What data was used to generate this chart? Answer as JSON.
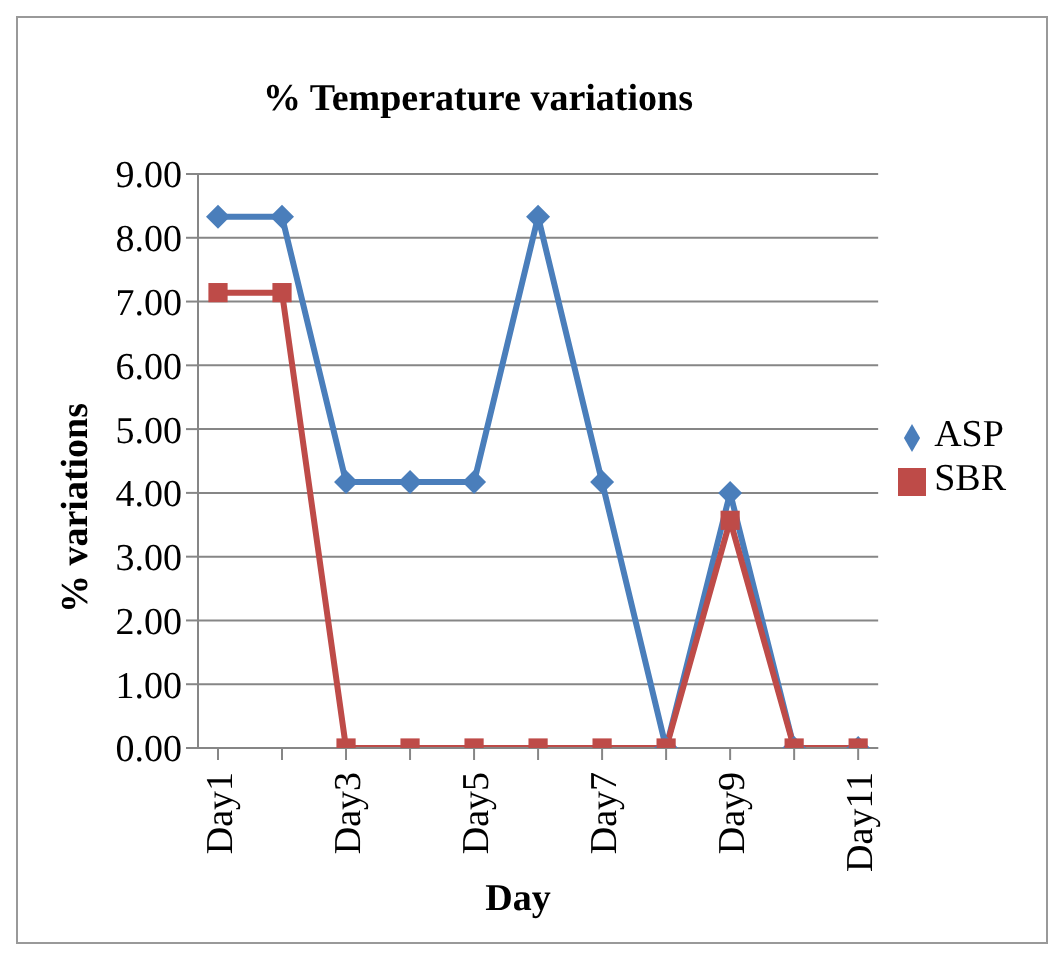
{
  "chart_data": {
    "type": "line",
    "title": "% Temperature variations",
    "xlabel": "Day",
    "ylabel": "% variations",
    "categories": [
      "Day1",
      null,
      "Day3",
      null,
      "Day5",
      null,
      "Day7",
      null,
      "Day9",
      null,
      "Day11"
    ],
    "series": [
      {
        "name": "ASP",
        "color": "#4a7ebb",
        "marker": "diamond",
        "values": [
          8.33,
          8.33,
          4.17,
          4.17,
          4.17,
          8.33,
          4.17,
          0,
          4.0,
          0,
          0
        ]
      },
      {
        "name": "SBR",
        "color": "#be4b48",
        "marker": "square",
        "values": [
          7.14,
          7.14,
          0,
          0,
          0,
          0,
          0,
          0,
          3.57,
          0,
          0
        ]
      }
    ],
    "ylim": [
      0,
      9
    ],
    "yticks": [
      {
        "value": 0,
        "label": "0.00"
      },
      {
        "value": 1,
        "label": "1.00"
      },
      {
        "value": 2,
        "label": "2.00"
      },
      {
        "value": 3,
        "label": "3.00"
      },
      {
        "value": 4,
        "label": "4.00"
      },
      {
        "value": 5,
        "label": "5.00"
      },
      {
        "value": 6,
        "label": "6.00"
      },
      {
        "value": 7,
        "label": "7.00"
      },
      {
        "value": 8,
        "label": "8.00"
      },
      {
        "value": 9,
        "label": "9.00"
      }
    ],
    "grid": "y",
    "legend": "right",
    "line_style": "solid"
  }
}
